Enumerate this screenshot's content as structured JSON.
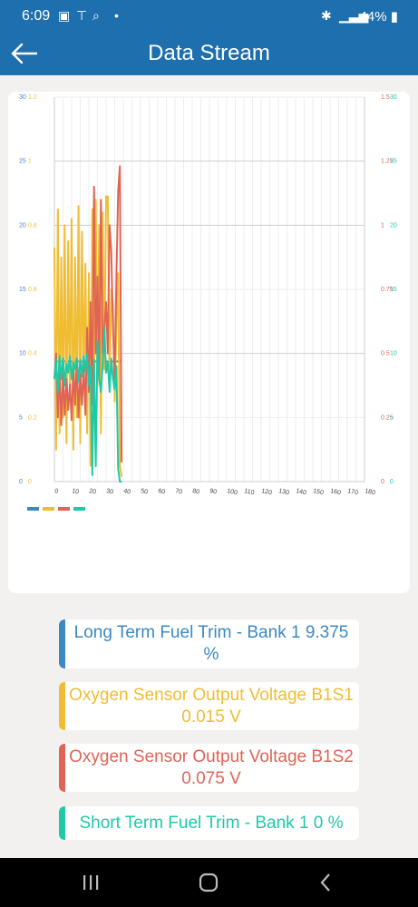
{
  "status": {
    "time": "6:09",
    "battery": "44%"
  },
  "header": {
    "title": "Data Stream"
  },
  "colors": {
    "blue": "#3b88c3",
    "yellow": "#f0bd32",
    "red": "#e06455",
    "teal": "#1ec9a7",
    "grid": "#cccccc"
  },
  "chart_data": {
    "type": "line",
    "x": [
      0,
      1,
      2,
      3,
      4,
      5,
      6,
      7,
      8,
      9,
      10,
      11,
      12,
      13,
      14,
      15,
      16,
      17,
      18,
      19,
      20,
      21,
      22,
      23,
      24,
      25,
      26,
      27,
      28,
      29,
      30,
      31,
      32,
      33,
      34,
      35,
      36,
      37,
      38,
      39
    ],
    "x_ticks": [
      "0",
      "10",
      "20",
      "30",
      "40",
      "50",
      "60",
      "70",
      "80",
      "90",
      "100",
      "110",
      "120",
      "130",
      "140",
      "150",
      "160",
      "170",
      "180"
    ],
    "xlim": [
      0,
      180
    ],
    "left_axes": [
      {
        "ticks": [
          "0",
          "5",
          "10",
          "15",
          "20",
          "25",
          "30"
        ],
        "ylim": [
          0,
          30
        ],
        "color": "#3b88c3"
      },
      {
        "ticks": [
          "0",
          "0.2",
          "0.4",
          "0.6",
          "0.8",
          "1",
          "1.2"
        ],
        "ylim": [
          0,
          1.2
        ],
        "color": "#f0bd32"
      }
    ],
    "right_axes": [
      {
        "ticks": [
          "0",
          "0.25",
          "0.5",
          "0.75",
          "1",
          "1.25",
          "1.5"
        ],
        "ylim": [
          0,
          1.5
        ],
        "color": "#e06455"
      },
      {
        "ticks": [
          "0",
          "5",
          "10",
          "15",
          "20",
          "25",
          "30"
        ],
        "ylim": [
          0,
          30
        ],
        "color": "#1ec9a7"
      }
    ],
    "series": [
      {
        "axis": "left0",
        "color": "#3b88c3",
        "values": [
          9.375,
          9.375,
          9.375,
          9.375,
          9.375,
          9.375,
          9.375,
          9.375,
          9.375,
          9.375,
          9.375,
          9.375,
          9.375,
          9.375,
          9.375,
          9.375,
          9.375,
          9.375,
          9.375,
          9.375,
          9.375,
          9.375,
          9.375,
          9.375,
          9.375,
          9.375,
          9.375,
          9.375,
          9.375,
          9.375,
          9.375,
          9.375,
          9.375,
          9.375,
          9.375,
          9.375,
          9.375,
          9.375,
          9.375,
          9.375
        ]
      },
      {
        "axis": "left1",
        "color": "#f0bd32",
        "values": [
          0.73,
          0.1,
          0.85,
          0.15,
          0.7,
          0.2,
          0.8,
          0.12,
          0.75,
          0.25,
          0.82,
          0.1,
          0.7,
          0.2,
          0.86,
          0.12,
          0.78,
          0.3,
          0.68,
          0.15,
          0.65,
          0.05,
          0.85,
          0.2,
          0.88,
          0.3,
          0.8,
          0.15,
          0.84,
          0.35,
          0.89,
          0.89,
          0.3,
          0.6,
          0.55,
          0.25,
          0.5,
          0.65,
          0.05,
          0.015
        ]
      },
      {
        "axis": "right0",
        "color": "#e06455",
        "values": [
          0.4,
          0.5,
          0.25,
          0.45,
          0.22,
          0.42,
          0.26,
          0.4,
          0.28,
          0.38,
          0.24,
          0.44,
          0.3,
          0.48,
          0.25,
          0.42,
          0.3,
          0.45,
          0.26,
          0.6,
          0.35,
          0.7,
          0.3,
          1.15,
          0.5,
          0.8,
          0.4,
          1.1,
          0.5,
          0.6,
          0.7,
          0.5,
          1.0,
          0.9,
          0.6,
          0.4,
          0.8,
          1.13,
          1.23,
          0.075
        ]
      },
      {
        "axis": "right1",
        "color": "#1ec9a7",
        "values": [
          8,
          9.5,
          7,
          9.8,
          8,
          9.6,
          7.5,
          9.2,
          8.5,
          9.8,
          8,
          9.3,
          8.8,
          9.6,
          7.8,
          9.5,
          8.2,
          9.8,
          8.6,
          10,
          7.5,
          9,
          0.5,
          9.5,
          1.2,
          11,
          8,
          7,
          9,
          12,
          8.5,
          9.3,
          7,
          9.6,
          8,
          7.2,
          9,
          1,
          0,
          0
        ]
      }
    ]
  },
  "readouts": [
    {
      "label": "Long Term Fuel Trim - Bank 1 9.375",
      "value": "%",
      "color": "#3b88c3"
    },
    {
      "label": "Oxygen Sensor Output Voltage B1S1",
      "value": "0.015 V",
      "color": "#f0bd32"
    },
    {
      "label": "Oxygen Sensor Output Voltage B1S2",
      "value": "0.075 V",
      "color": "#e06455"
    },
    {
      "label": "Short Term Fuel Trim - Bank 1 0 %",
      "value": "",
      "color": "#1ec9a7"
    }
  ]
}
